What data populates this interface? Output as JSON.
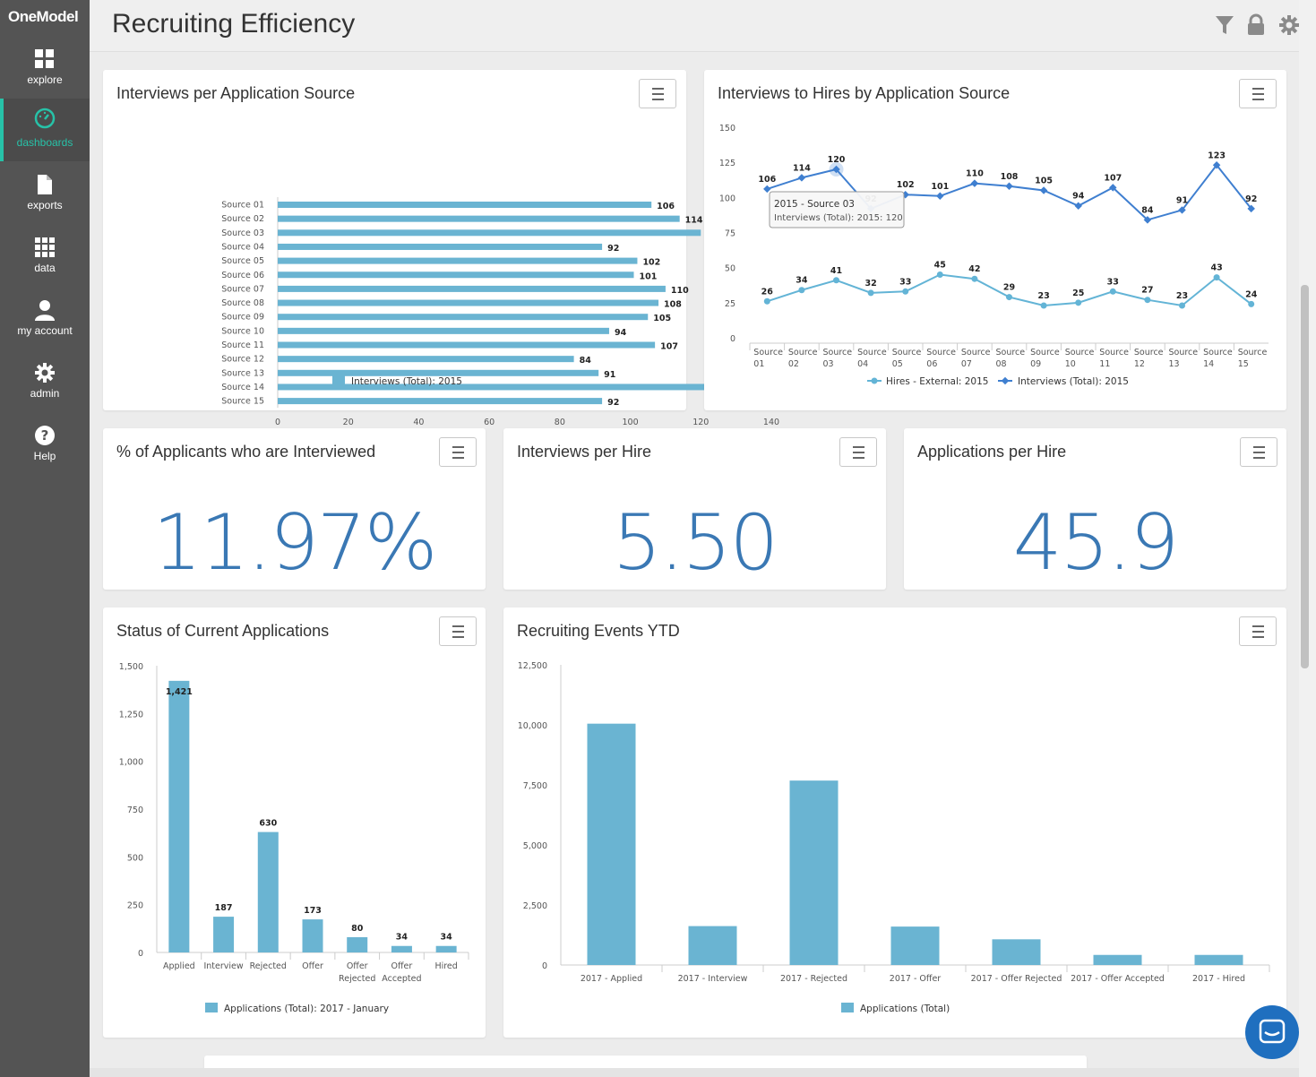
{
  "app": {
    "logo": "OneModel"
  },
  "sidebar": {
    "items": [
      {
        "label": "explore"
      },
      {
        "label": "dashboards"
      },
      {
        "label": "exports"
      },
      {
        "label": "data"
      },
      {
        "label": "my account"
      },
      {
        "label": "admin"
      },
      {
        "label": "Help"
      }
    ]
  },
  "header": {
    "title": "Recruiting Efficiency"
  },
  "colors": {
    "accent": "#27c2a8",
    "bar": "#6ab4d2",
    "line_dark": "#3f7fd0",
    "line_light": "#63b4d6",
    "big_number": "#3a78b4"
  },
  "cards": {
    "interviews_per_source": {
      "title": "Interviews per Application Source"
    },
    "interviews_to_hires": {
      "title": "Interviews to Hires by Application Source"
    },
    "pct_interviewed": {
      "title": "% of Applicants who are Interviewed",
      "value": "11.97%"
    },
    "interviews_per_hire": {
      "title": "Interviews per Hire",
      "value": "5.50"
    },
    "applications_per_hire": {
      "title": "Applications per Hire",
      "value": "45.9"
    },
    "status_current": {
      "title": "Status of Current Applications"
    },
    "recruiting_events": {
      "title": "Recruiting Events YTD"
    }
  },
  "chart_data": [
    {
      "type": "bar",
      "orientation": "horizontal",
      "title": "Interviews per Application Source",
      "categories": [
        "Source 01",
        "Source 02",
        "Source 03",
        "Source 04",
        "Source 05",
        "Source 06",
        "Source 07",
        "Source 08",
        "Source 09",
        "Source 10",
        "Source 11",
        "Source 12",
        "Source 13",
        "Source 14",
        "Source 15"
      ],
      "series": [
        {
          "name": "Interviews (Total): 2015",
          "values": [
            106,
            114,
            120,
            92,
            102,
            101,
            110,
            108,
            105,
            94,
            107,
            84,
            91,
            123,
            92
          ]
        }
      ],
      "xlim": [
        0,
        140
      ],
      "xticks": [
        0,
        20,
        40,
        60,
        80,
        100,
        120,
        140
      ],
      "legend": "bottom"
    },
    {
      "type": "line",
      "title": "Interviews to Hires by Application Source",
      "categories": [
        [
          "Source",
          "01"
        ],
        [
          "Source",
          "02"
        ],
        [
          "Source",
          "03"
        ],
        [
          "Source",
          "04"
        ],
        [
          "Source",
          "05"
        ],
        [
          "Source",
          "06"
        ],
        [
          "Source",
          "07"
        ],
        [
          "Source",
          "08"
        ],
        [
          "Source",
          "09"
        ],
        [
          "Source",
          "10"
        ],
        [
          "Source",
          "11"
        ],
        [
          "Source",
          "12"
        ],
        [
          "Source",
          "13"
        ],
        [
          "Source",
          "14"
        ],
        [
          "Source",
          "15"
        ]
      ],
      "series": [
        {
          "name": "Hires - External: 2015",
          "values": [
            26,
            34,
            41,
            32,
            33,
            45,
            42,
            29,
            23,
            25,
            33,
            27,
            23,
            43,
            24
          ]
        },
        {
          "name": "Interviews (Total): 2015",
          "values": [
            106,
            114,
            120,
            92,
            102,
            101,
            110,
            108,
            105,
            94,
            107,
            84,
            91,
            123,
            92
          ]
        }
      ],
      "ylim": [
        0,
        150
      ],
      "yticks": [
        0,
        25,
        50,
        75,
        100,
        125,
        150
      ],
      "legend": "bottom",
      "tooltip": {
        "title": "2015 - Source 03",
        "text": "Interviews (Total): 2015: 120"
      }
    },
    {
      "type": "bar",
      "title": "Status of Current Applications",
      "categories": [
        [
          "Applied"
        ],
        [
          "Interview"
        ],
        [
          "Rejected"
        ],
        [
          "Offer"
        ],
        [
          "Offer",
          "Rejected"
        ],
        [
          "Offer",
          "Accepted"
        ],
        [
          "Hired"
        ]
      ],
      "series": [
        {
          "name": "Applications (Total): 2017 - January",
          "values": [
            1421,
            187,
            630,
            173,
            80,
            34,
            34
          ]
        }
      ],
      "value_labels": [
        "1,421",
        "187",
        "630",
        "173",
        "80",
        "34",
        "34"
      ],
      "ylim": [
        0,
        1500
      ],
      "yticks": [
        "0",
        "250",
        "500",
        "750",
        "1,000",
        "1,250",
        "1,500"
      ],
      "legend": "bottom"
    },
    {
      "type": "bar",
      "title": "Recruiting Events YTD",
      "categories": [
        "2017 - Applied",
        "2017 - Interview",
        "2017 - Rejected",
        "2017 - Offer",
        "2017 - Offer Rejected",
        "2017 - Offer Accepted",
        "2017 - Hired"
      ],
      "series": [
        {
          "name": "Applications (Total)",
          "values": [
            10050,
            1620,
            7680,
            1600,
            1070,
            420,
            420
          ]
        }
      ],
      "ylim": [
        0,
        12500
      ],
      "yticks": [
        "0",
        "2,500",
        "5,000",
        "7,500",
        "10,000",
        "12,500"
      ],
      "legend": "bottom"
    }
  ]
}
